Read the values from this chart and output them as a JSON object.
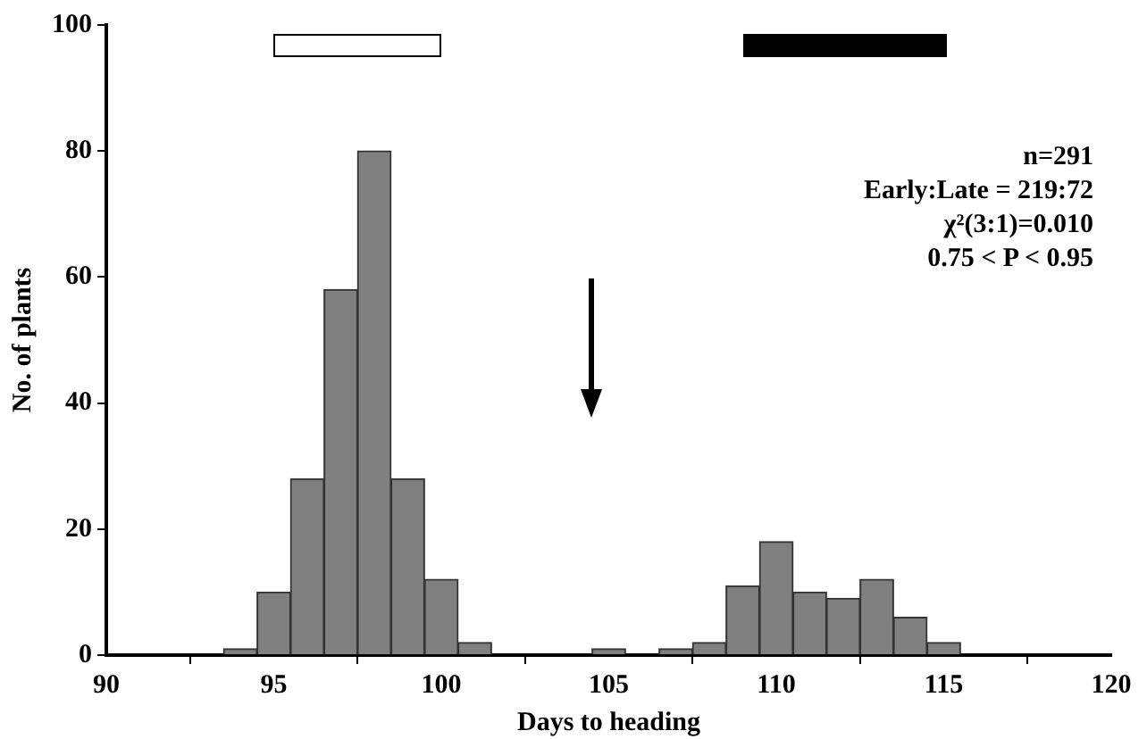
{
  "chart_data": {
    "type": "histogram",
    "xlabel": "Days to heading",
    "ylabel": "No. of plants",
    "bins": [
      93.5,
      94.5,
      95.5,
      96.5,
      97.5,
      98.5,
      99.5,
      100.5,
      101.5,
      102.5,
      103.5,
      104.5,
      105.5,
      106.5,
      107.5,
      108.5,
      109.5,
      110.5,
      111.5,
      112.5,
      113.5,
      114.5,
      115.5
    ],
    "values": [
      1,
      10,
      28,
      58,
      80,
      28,
      12,
      2,
      0,
      0,
      0,
      1,
      0,
      1,
      2,
      11,
      18,
      10,
      9,
      12,
      6,
      2
    ],
    "color": "#808080",
    "xlim": [
      90,
      120
    ],
    "xticks": [
      90,
      95,
      100,
      105,
      110,
      115,
      120
    ],
    "ylim": [
      0,
      100
    ],
    "yticks": [
      0,
      20,
      40,
      60,
      80,
      100
    ],
    "grid": false,
    "legend": false,
    "annotations": [
      "n=291",
      "Early:Late = 219:72",
      "χ²(3:1)=0.010",
      "0.75 < P < 0.95"
    ]
  }
}
